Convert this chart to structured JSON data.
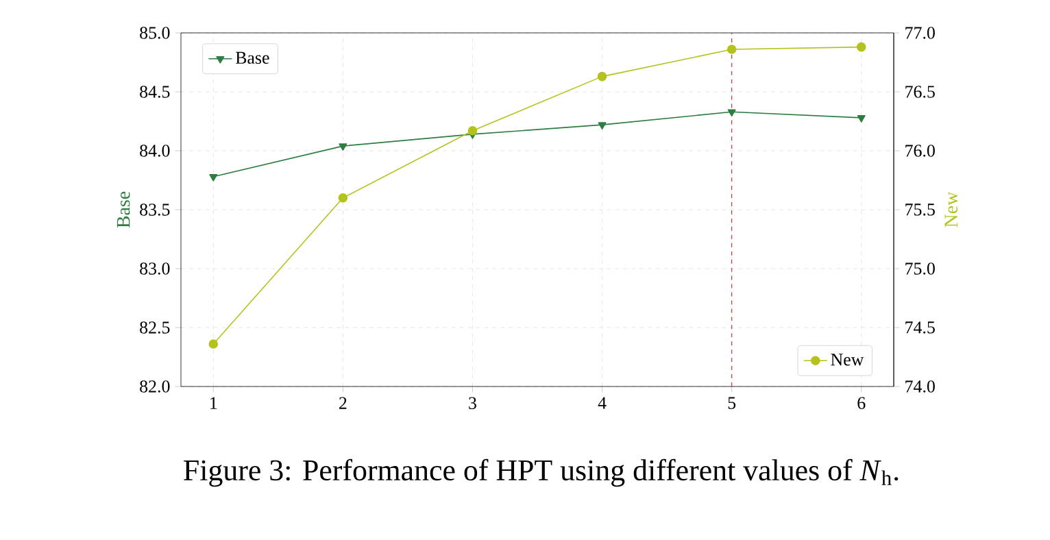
{
  "chart_data": {
    "type": "line",
    "x": [
      1,
      2,
      3,
      4,
      5,
      6
    ],
    "series": [
      {
        "name": "Base",
        "color": "#2e7d40",
        "values": [
          83.78,
          84.04,
          84.14,
          84.22,
          84.33,
          84.28
        ],
        "marker": "triangle"
      },
      {
        "name": "New",
        "color": "#b4c31c",
        "values": [
          74.36,
          75.6,
          76.17,
          76.63,
          76.86,
          76.88
        ],
        "marker": "circle",
        "axis": "y2"
      }
    ],
    "ylabel": "Base",
    "y2label": "New",
    "xlim": [
      0.75,
      6.25
    ],
    "xticks": [
      1,
      2,
      3,
      4,
      5,
      6
    ],
    "ylim": [
      82,
      85
    ],
    "yticks": [
      {
        "value": 82,
        "label": "82.0"
      },
      82.5,
      {
        "value": 83,
        "label": "83.0"
      },
      83.5,
      {
        "value": 84,
        "label": "84.0"
      },
      84.5,
      {
        "value": 85,
        "label": "85.0"
      }
    ],
    "y2lim": [
      74,
      77
    ],
    "y2ticks": [
      {
        "value": 74,
        "label": "74.0"
      },
      74.5,
      {
        "value": 75,
        "label": "75.0"
      },
      75.5,
      {
        "value": 76,
        "label": "76.0"
      },
      76.5,
      {
        "value": 77,
        "label": "77.0"
      }
    ],
    "ref_lines": [
      {
        "axis": "x",
        "value": 5,
        "color": "#e03030",
        "line_style": "dashed"
      }
    ],
    "grid": true,
    "legend": "top left",
    "line_style": "solid",
    "annotations": [
      "Figure 3: Performance of HPT using different values of *N*$_{h}$."
    ]
  }
}
